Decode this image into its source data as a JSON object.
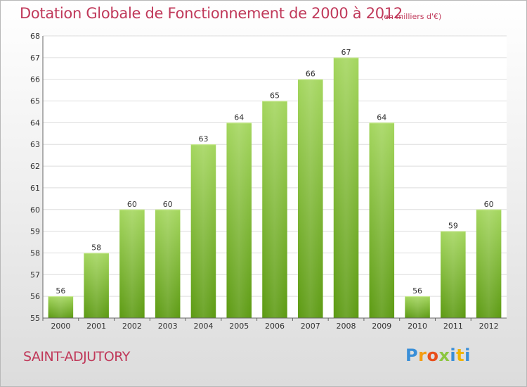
{
  "header": {
    "title": "Dotation Globale de Fonctionnement de 2000 à 2012",
    "subtitle": "(en milliers d'€)"
  },
  "footer": {
    "commune": "SAINT-ADJUTORY",
    "logo_text": "Proxiti"
  },
  "colors": {
    "title": "#c0395a",
    "bar_light": "#a4d65e",
    "bar_dark": "#5c9a12",
    "grid": "#dddddd"
  },
  "chart_data": {
    "type": "bar",
    "title": "Dotation Globale de Fonctionnement de 2000 à 2012",
    "subtitle": "(en milliers d'€)",
    "xlabel": "",
    "ylabel": "",
    "categories": [
      "2000",
      "2001",
      "2002",
      "2003",
      "2004",
      "2005",
      "2006",
      "2007",
      "2008",
      "2009",
      "2010",
      "2011",
      "2012"
    ],
    "values": [
      56,
      58,
      60,
      60,
      63,
      64,
      65,
      66,
      67,
      64,
      56,
      59,
      60
    ],
    "ylim": [
      55,
      68
    ],
    "yticks": [
      55,
      56,
      57,
      58,
      59,
      60,
      61,
      62,
      63,
      64,
      65,
      66,
      67,
      68
    ],
    "grid": true,
    "data_labels": true
  }
}
